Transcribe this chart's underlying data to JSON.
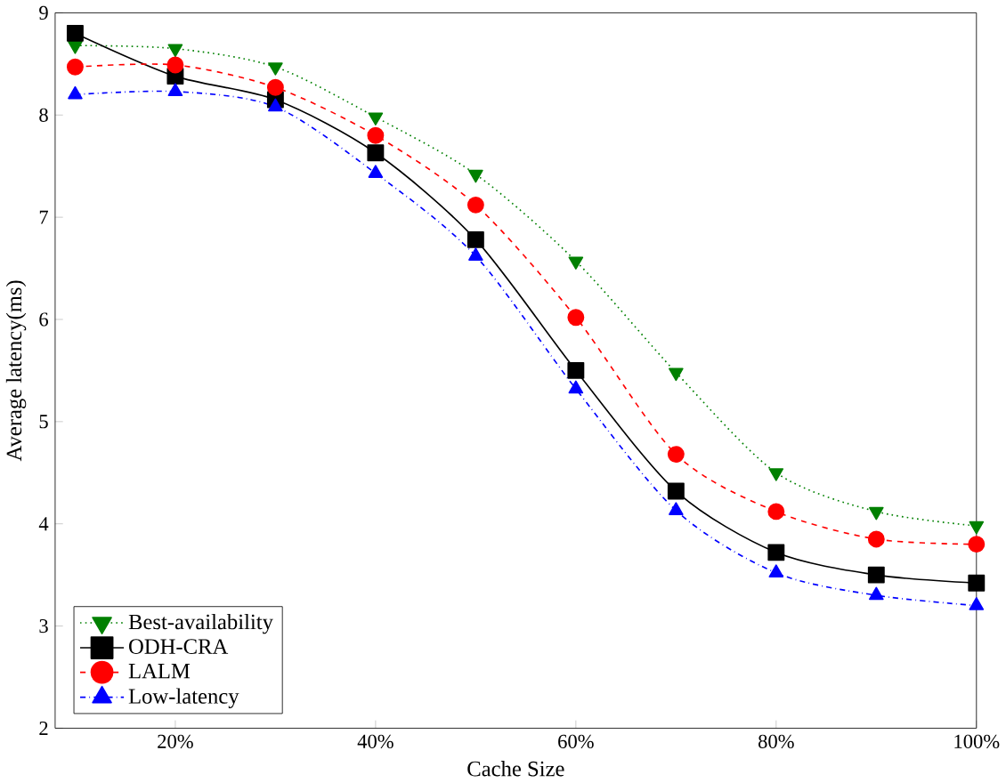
{
  "chart_data": {
    "type": "line",
    "xlabel": "Cache Size",
    "ylabel": "Average latency(ms)",
    "x": [
      10,
      20,
      30,
      40,
      50,
      60,
      70,
      80,
      90,
      100
    ],
    "xlim": [
      8,
      100
    ],
    "xticks": [
      {
        "value": 20,
        "label": "20%"
      },
      {
        "value": 40,
        "label": "40%"
      },
      {
        "value": 60,
        "label": "60%"
      },
      {
        "value": 80,
        "label": "80%"
      },
      {
        "value": 100,
        "label": "100%"
      }
    ],
    "ylim": [
      2,
      9
    ],
    "yticks": [
      2,
      3,
      4,
      5,
      6,
      7,
      8,
      9
    ],
    "legend": "bottom left",
    "grid": false,
    "series": [
      {
        "name": "Best-availability",
        "color": "#008000",
        "marker": "triangle-down",
        "line_style": "dotted",
        "values": [
          8.68,
          8.65,
          8.47,
          7.98,
          7.42,
          6.57,
          5.48,
          4.5,
          4.12,
          3.98
        ]
      },
      {
        "name": "ODH-CRA",
        "color": "#000000",
        "marker": "square",
        "line_style": "solid",
        "values": [
          8.8,
          8.38,
          8.15,
          7.63,
          6.78,
          5.5,
          4.32,
          3.72,
          3.5,
          3.42
        ]
      },
      {
        "name": "LALM",
        "color": "#ff0000",
        "marker": "circle",
        "line_style": "dashed",
        "values": [
          8.47,
          8.49,
          8.27,
          7.8,
          7.12,
          6.02,
          4.68,
          4.12,
          3.85,
          3.8
        ]
      },
      {
        "name": "Low-latency",
        "color": "#0000ff",
        "marker": "triangle",
        "line_style": "dashdot",
        "values": [
          8.2,
          8.23,
          8.08,
          7.43,
          6.62,
          5.32,
          4.13,
          3.52,
          3.3,
          3.2
        ]
      }
    ]
  }
}
